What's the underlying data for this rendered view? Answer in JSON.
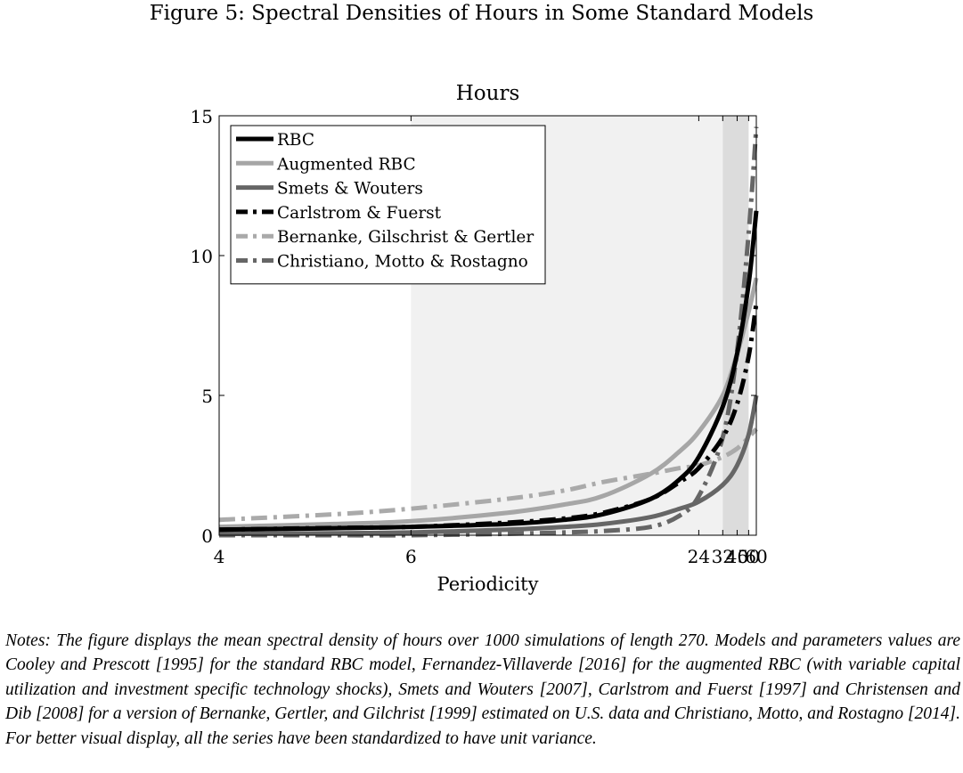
{
  "figure_caption": "Figure 5: Spectral Densities of Hours in Some Standard Models",
  "notes": "Notes: The figure displays the mean spectral density of hours over 1000 simulations of length 270. Models and parameters values are Cooley and Prescott [1995] for the standard RBC model, Fernandez-Villaverde [2016] for the augmented RBC (with variable capital utilization and investment specific technology shocks), Smets and Wouters [2007], Carlstrom and Fuerst [1997] and Christensen and Dib [2008] for a version of Bernanke, Gertler, and Gilchrist [1999] estimated on U.S. data and Christiano, Motto, and Rostagno [2014]. For better visual display, all the series have been standardized to have unit variance.",
  "chart_data": {
    "type": "line",
    "title": "Hours",
    "xlabel": "Periodicity",
    "ylabel": "",
    "x_scale": "reciprocal (frequency) axis labelled by periodicity",
    "xlim": [
      4,
      60
    ],
    "ylim": [
      0,
      15
    ],
    "x_ticks": [
      4,
      6,
      24,
      32,
      40,
      50,
      60
    ],
    "y_ticks": [
      0,
      5,
      10,
      15
    ],
    "x_tick_labels": [
      "4",
      "6",
      "24",
      "32",
      "40",
      "50",
      "60"
    ],
    "y_tick_labels": [
      "0",
      "5",
      "10",
      "15"
    ],
    "shaded_bands": [
      {
        "from": 6,
        "to": 32,
        "color": "#f1f1f1"
      },
      {
        "from": 32,
        "to": 50,
        "color": "#dcdcdc"
      }
    ],
    "grid": false,
    "legend_position": "top-left",
    "x": [
      4,
      5,
      6,
      8,
      10,
      12,
      16,
      20,
      24,
      32,
      40,
      50,
      60
    ],
    "series": [
      {
        "name": "RBC",
        "color": "#000000",
        "dash": "solid",
        "values": [
          0.2,
          0.25,
          0.3,
          0.4,
          0.55,
          0.75,
          1.3,
          2.0,
          2.8,
          4.6,
          6.5,
          9.0,
          11.6
        ]
      },
      {
        "name": "Augmented RBC",
        "color": "#a6a6a6",
        "dash": "solid",
        "values": [
          0.3,
          0.4,
          0.5,
          0.8,
          1.1,
          1.4,
          2.2,
          3.0,
          3.7,
          5.0,
          6.5,
          8.0,
          9.2
        ]
      },
      {
        "name": "Smets & Wouters",
        "color": "#666666",
        "dash": "solid",
        "values": [
          0.05,
          0.07,
          0.1,
          0.2,
          0.3,
          0.4,
          0.65,
          0.95,
          1.2,
          1.8,
          2.5,
          3.6,
          5.0
        ]
      },
      {
        "name": "Carlstrom & Fuerst",
        "color": "#000000",
        "dash": "dashdot",
        "values": [
          0.2,
          0.26,
          0.3,
          0.45,
          0.6,
          0.8,
          1.3,
          1.9,
          2.4,
          3.5,
          4.7,
          6.4,
          8.3
        ]
      },
      {
        "name": "Bernanke, Gilschrist & Gertler",
        "color": "#aaaaaa",
        "dash": "dashdot",
        "values": [
          0.55,
          0.75,
          0.95,
          1.3,
          1.6,
          1.9,
          2.2,
          2.4,
          2.5,
          2.8,
          3.1,
          3.5,
          3.8
        ]
      },
      {
        "name": "Christiano, Motto & Rostagno",
        "color": "#666666",
        "dash": "dashdot",
        "values": [
          0.0,
          0.0,
          0.0,
          0.05,
          0.1,
          0.15,
          0.3,
          0.7,
          1.4,
          3.5,
          6.6,
          10.8,
          14.6
        ]
      }
    ]
  }
}
